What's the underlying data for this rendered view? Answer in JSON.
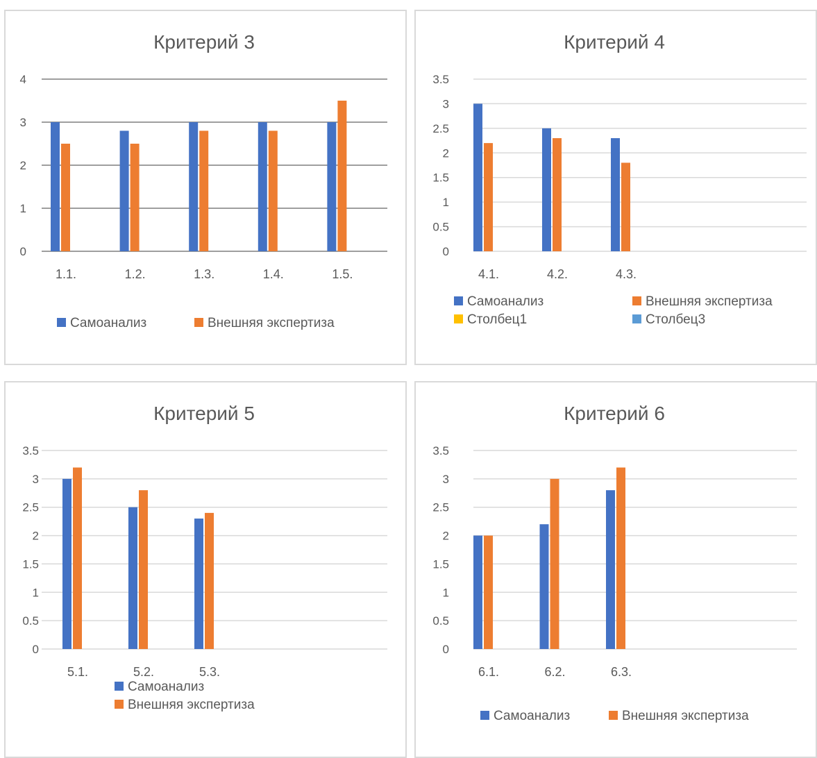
{
  "colors": {
    "series1": "#4472C4",
    "series2": "#ED7D31",
    "series3": "#FFC000",
    "series4": "#5B9BD5",
    "grid": "#d9d9d9",
    "grid_dark": "#7f7f7f",
    "text": "#595959"
  },
  "chart_data": [
    {
      "type": "bar",
      "title": "Критерий 3",
      "categories": [
        "1.1.",
        "1.2.",
        "1.3.",
        "1.4.",
        "1.5."
      ],
      "series": [
        {
          "name": "Самоанализ",
          "values": [
            3,
            2.8,
            3,
            3,
            3
          ]
        },
        {
          "name": "Внешняя экспертиза",
          "values": [
            2.5,
            2.5,
            2.8,
            2.8,
            3.5
          ]
        }
      ],
      "yticks": [
        "0",
        "1",
        "2",
        "3",
        "4"
      ],
      "ylim": [
        0,
        4
      ],
      "legend": "bottom",
      "legend_entries": [
        "Самоанализ",
        "Внешняя экспертиза"
      ]
    },
    {
      "type": "bar",
      "title": "Критерий 4",
      "categories": [
        "4.1.",
        "4.2.",
        "4.3."
      ],
      "series": [
        {
          "name": "Самоанализ",
          "values": [
            3,
            2.5,
            2.3
          ]
        },
        {
          "name": "Внешняя экспертиза",
          "values": [
            2.2,
            2.3,
            1.8
          ]
        }
      ],
      "yticks": [
        "0",
        "0.5",
        "1",
        "1.5",
        "2",
        "2.5",
        "3",
        "3.5"
      ],
      "ylim": [
        0,
        3.5
      ],
      "legend": "bottom",
      "legend_entries": [
        "Самоанализ",
        "Внешняя экспертиза",
        "Столбец1",
        "Столбец3"
      ]
    },
    {
      "type": "bar",
      "title": "Критерий 5",
      "categories": [
        "5.1.",
        "5.2.",
        "5.3."
      ],
      "series": [
        {
          "name": "Самоанализ",
          "values": [
            3,
            2.5,
            2.3
          ]
        },
        {
          "name": "Внешняя экспертиза",
          "values": [
            3.2,
            2.8,
            2.4
          ]
        }
      ],
      "yticks": [
        "0",
        "0.5",
        "1",
        "1.5",
        "2",
        "2.5",
        "3",
        "3.5"
      ],
      "ylim": [
        0,
        3.5
      ],
      "legend": "bottom",
      "legend_entries": [
        "Самоанализ",
        "Внешняя экспертиза"
      ]
    },
    {
      "type": "bar",
      "title": "Критерий 6",
      "categories": [
        "6.1.",
        "6.2.",
        "6.3."
      ],
      "series": [
        {
          "name": "Самоанализ",
          "values": [
            2,
            2.2,
            2.8
          ]
        },
        {
          "name": "Внешняя экспертиза",
          "values": [
            2,
            3,
            3.2
          ]
        }
      ],
      "yticks": [
        "0",
        "0.5",
        "1",
        "1.5",
        "2",
        "2.5",
        "3",
        "3.5"
      ],
      "ylim": [
        0,
        3.5
      ],
      "legend": "bottom",
      "legend_entries": [
        "Самоанализ",
        "Внешняя экспертиза"
      ]
    }
  ]
}
